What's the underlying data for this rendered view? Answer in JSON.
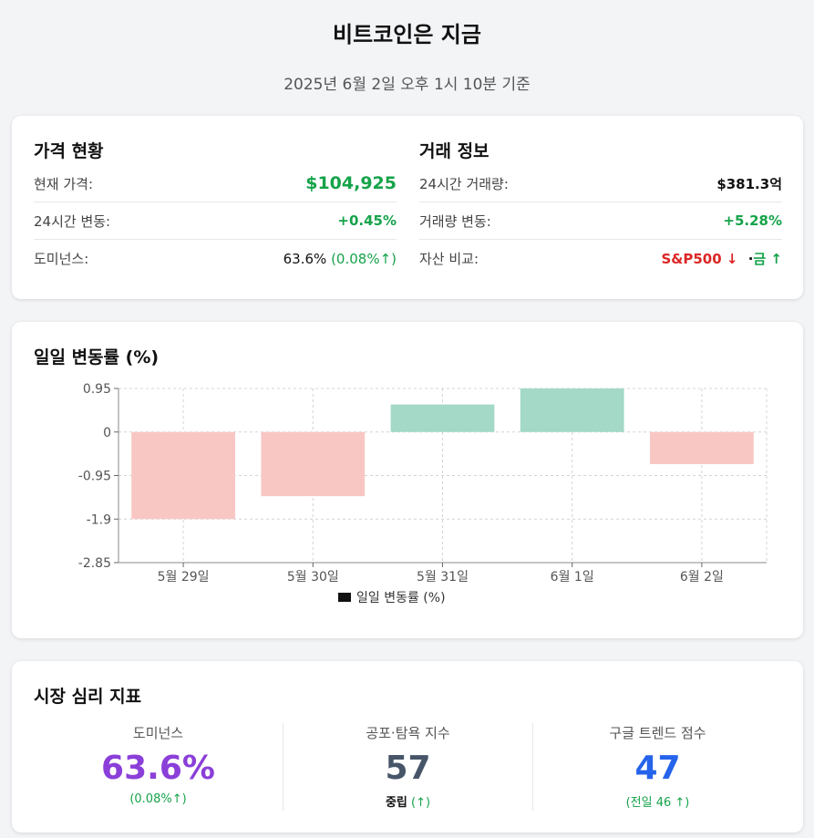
{
  "header": {
    "title": "비트코인은 지금",
    "subtitle": "2025년 6월 2일 오후 1시 10분 기준"
  },
  "price": {
    "title": "가격 현황",
    "current_label": "현재 가격:",
    "current_value": "$104,925",
    "change_label": "24시간 변동:",
    "change_value": "+0.45%",
    "dominance_label": "도미넌스:",
    "dominance_value": "63.6%",
    "dominance_change": "(0.08%↑)"
  },
  "trade": {
    "title": "거래 정보",
    "volume_label": "24시간 거래량:",
    "volume_value": "$381.3억",
    "volume_change_label": "거래량 변동:",
    "volume_change_value": "+5.28%",
    "compare_label": "자산 비교:",
    "compare_sp": "S&P500 ↓",
    "compare_sep": "·",
    "compare_gold": "금 ↑"
  },
  "chart_data": {
    "type": "bar",
    "title": "일일 변동률 (%)",
    "categories": [
      "5월 29일",
      "5월 30일",
      "5월 31일",
      "6월 1일",
      "6월 2일"
    ],
    "series": [
      {
        "name": "일일 변동률 (%)",
        "values": [
          -1.9,
          -1.4,
          0.6,
          0.95,
          -0.7
        ]
      }
    ],
    "yticks": [
      "0.95",
      "0",
      "-0.95",
      "-1.9",
      "-2.85"
    ],
    "ylim": [
      -2.85,
      0.95
    ],
    "grid": true,
    "legend": "bottom",
    "colors": {
      "positive": "#a3d9c6",
      "negative": "#f8c7c4"
    }
  },
  "sentiment": {
    "title": "시장 심리 지표",
    "dominance": {
      "label": "도미넌스",
      "value": "63.6%",
      "sub": "(0.08%↑)",
      "color": "#8b3fd9"
    },
    "fear_greed": {
      "label": "공포·탐욕 지수",
      "value": "57",
      "sub_main": "중립",
      "sub_arrow": "(↑)",
      "color": "#475569"
    },
    "google": {
      "label": "구글 트렌드 점수",
      "value": "47",
      "sub": "(전일 46 ↑)",
      "color": "#2563eb"
    }
  }
}
